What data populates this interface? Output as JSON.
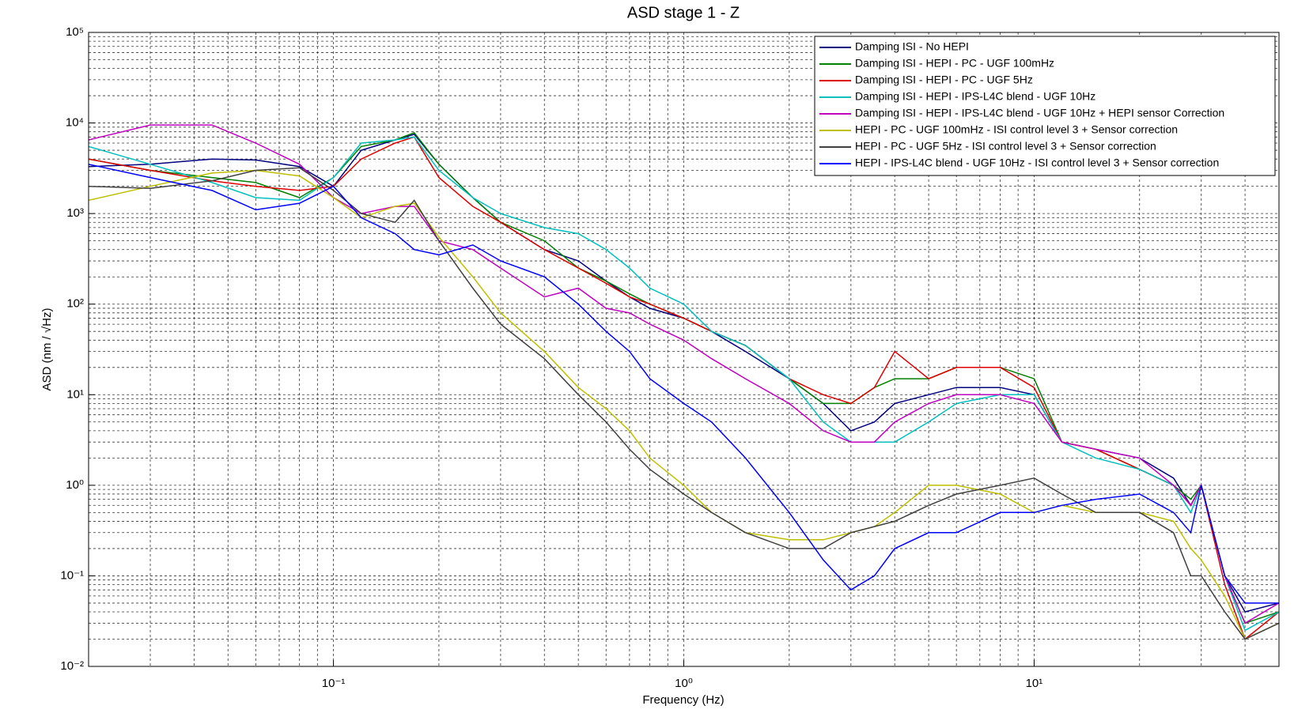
{
  "chart_data": {
    "type": "line",
    "title": "ASD stage 1 - Z",
    "x_label": "Frequency (Hz)",
    "y_label": "ASD (nm / √Hz)",
    "x_scale": "log",
    "y_scale": "log",
    "grid": true,
    "minor_grid": true,
    "legend_location": "upper right",
    "xlim": [
      0.02,
      50
    ],
    "ylim": [
      0.01,
      100000
    ],
    "xticks": [
      {
        "value": 0.1,
        "label": "10⁻¹"
      },
      {
        "value": 1,
        "label": "10⁰"
      },
      {
        "value": 10,
        "label": "10¹"
      }
    ],
    "yticks": [
      {
        "value": 0.01,
        "label": "10⁻²"
      },
      {
        "value": 0.1,
        "label": "10⁻¹"
      },
      {
        "value": 1,
        "label": "10⁰"
      },
      {
        "value": 10,
        "label": "10¹"
      },
      {
        "value": 100,
        "label": "10²"
      },
      {
        "value": 1000,
        "label": "10³"
      },
      {
        "value": 10000,
        "label": "10⁴"
      },
      {
        "value": 100000,
        "label": "10⁵"
      }
    ],
    "x": [
      0.02,
      0.03,
      0.045,
      0.06,
      0.08,
      0.1,
      0.12,
      0.15,
      0.17,
      0.2,
      0.25,
      0.3,
      0.4,
      0.5,
      0.6,
      0.7,
      0.8,
      1,
      1.2,
      1.5,
      2,
      2.5,
      3,
      3.5,
      4,
      5,
      6,
      8,
      10,
      12,
      15,
      20,
      25,
      28,
      30,
      35,
      40,
      50
    ],
    "series": [
      {
        "name": "Damping ISI - No HEPI",
        "color": "#00007f",
        "values": [
          3300,
          3500,
          4000,
          3900,
          3300,
          2000,
          5000,
          6500,
          7500,
          3500,
          1500,
          800,
          400,
          300,
          180,
          120,
          90,
          70,
          50,
          30,
          15,
          8,
          4,
          5,
          8,
          10,
          12,
          12,
          10,
          3,
          2.5,
          2,
          1.2,
          0.6,
          1,
          0.1,
          0.04,
          0.05
        ]
      },
      {
        "name": "Damping ISI - HEPI - PC - UGF 100mHz",
        "color": "#007f00",
        "values": [
          4000,
          3000,
          2500,
          2200,
          1500,
          2500,
          5500,
          6500,
          7800,
          3500,
          1500,
          800,
          500,
          250,
          180,
          130,
          100,
          70,
          50,
          35,
          15,
          8,
          8,
          12,
          15,
          15,
          20,
          20,
          15,
          3,
          2.5,
          1.5,
          1,
          0.7,
          1,
          0.1,
          0.03,
          0.04
        ]
      },
      {
        "name": "Damping ISI - HEPI - PC - UGF 5Hz",
        "color": "#e00000",
        "values": [
          4000,
          3000,
          2300,
          2000,
          1800,
          2000,
          4000,
          6000,
          7000,
          2500,
          1200,
          800,
          400,
          250,
          170,
          120,
          100,
          70,
          50,
          35,
          15,
          10,
          8,
          12,
          30,
          15,
          20,
          20,
          12,
          3,
          2.5,
          1.5,
          1,
          0.6,
          1,
          0.08,
          0.02,
          0.04
        ]
      },
      {
        "name": "Damping ISI - HEPI - IPS-L4C blend - UGF 10Hz",
        "color": "#00bfbf",
        "values": [
          5500,
          3500,
          2200,
          1500,
          1400,
          2500,
          6000,
          6500,
          7000,
          3000,
          1500,
          1000,
          700,
          600,
          400,
          250,
          150,
          100,
          50,
          35,
          15,
          5,
          3,
          3,
          3,
          5,
          8,
          10,
          10,
          3,
          2,
          1.5,
          1,
          0.5,
          1,
          0.1,
          0.025,
          0.04
        ]
      },
      {
        "name": "Damping ISI - HEPI - IPS-L4C blend - UGF 10Hz + HEPI sensor Correction",
        "color": "#bf00bf",
        "values": [
          6500,
          9500,
          9500,
          6000,
          3500,
          1500,
          1000,
          1200,
          1200,
          500,
          400,
          250,
          120,
          150,
          90,
          80,
          60,
          40,
          25,
          15,
          8,
          4,
          3,
          3,
          5,
          8,
          10,
          10,
          8,
          3,
          2.5,
          2,
          1,
          0.6,
          1,
          0.1,
          0.03,
          0.05
        ]
      },
      {
        "name": "HEPI - PC - UGF 100mHz - ISI control level 3 + Sensor correction",
        "color": "#bfbf00",
        "values": [
          1400,
          2000,
          2800,
          3000,
          2600,
          1500,
          900,
          1200,
          1300,
          550,
          200,
          80,
          30,
          12,
          7,
          4,
          2,
          1,
          0.5,
          0.3,
          0.25,
          0.25,
          0.3,
          0.35,
          0.5,
          1,
          1,
          0.8,
          0.5,
          0.6,
          0.5,
          0.5,
          0.4,
          0.2,
          0.15,
          0.06,
          0.02,
          0.03
        ]
      },
      {
        "name": "HEPI - PC - UGF 5Hz - ISI control level 3 + Sensor correction",
        "color": "#404040",
        "values": [
          2000,
          1900,
          2300,
          3000,
          3200,
          1800,
          1000,
          800,
          1400,
          500,
          150,
          60,
          25,
          10,
          5,
          2.5,
          1.5,
          0.8,
          0.5,
          0.3,
          0.2,
          0.2,
          0.3,
          0.35,
          0.4,
          0.6,
          0.8,
          1,
          1.2,
          0.8,
          0.5,
          0.5,
          0.3,
          0.1,
          0.1,
          0.04,
          0.02,
          0.03
        ]
      },
      {
        "name": "HEPI - IPS-L4C blend - UGF 10Hz - ISI control level 3 + Sensor correction",
        "color": "#0000ff",
        "values": [
          3500,
          2500,
          1800,
          1100,
          1300,
          2000,
          900,
          600,
          400,
          350,
          450,
          300,
          200,
          100,
          50,
          30,
          15,
          8,
          5,
          2,
          0.5,
          0.15,
          0.07,
          0.1,
          0.2,
          0.3,
          0.3,
          0.5,
          0.5,
          0.6,
          0.7,
          0.8,
          0.5,
          0.3,
          1,
          0.1,
          0.05,
          0.05
        ]
      }
    ]
  }
}
